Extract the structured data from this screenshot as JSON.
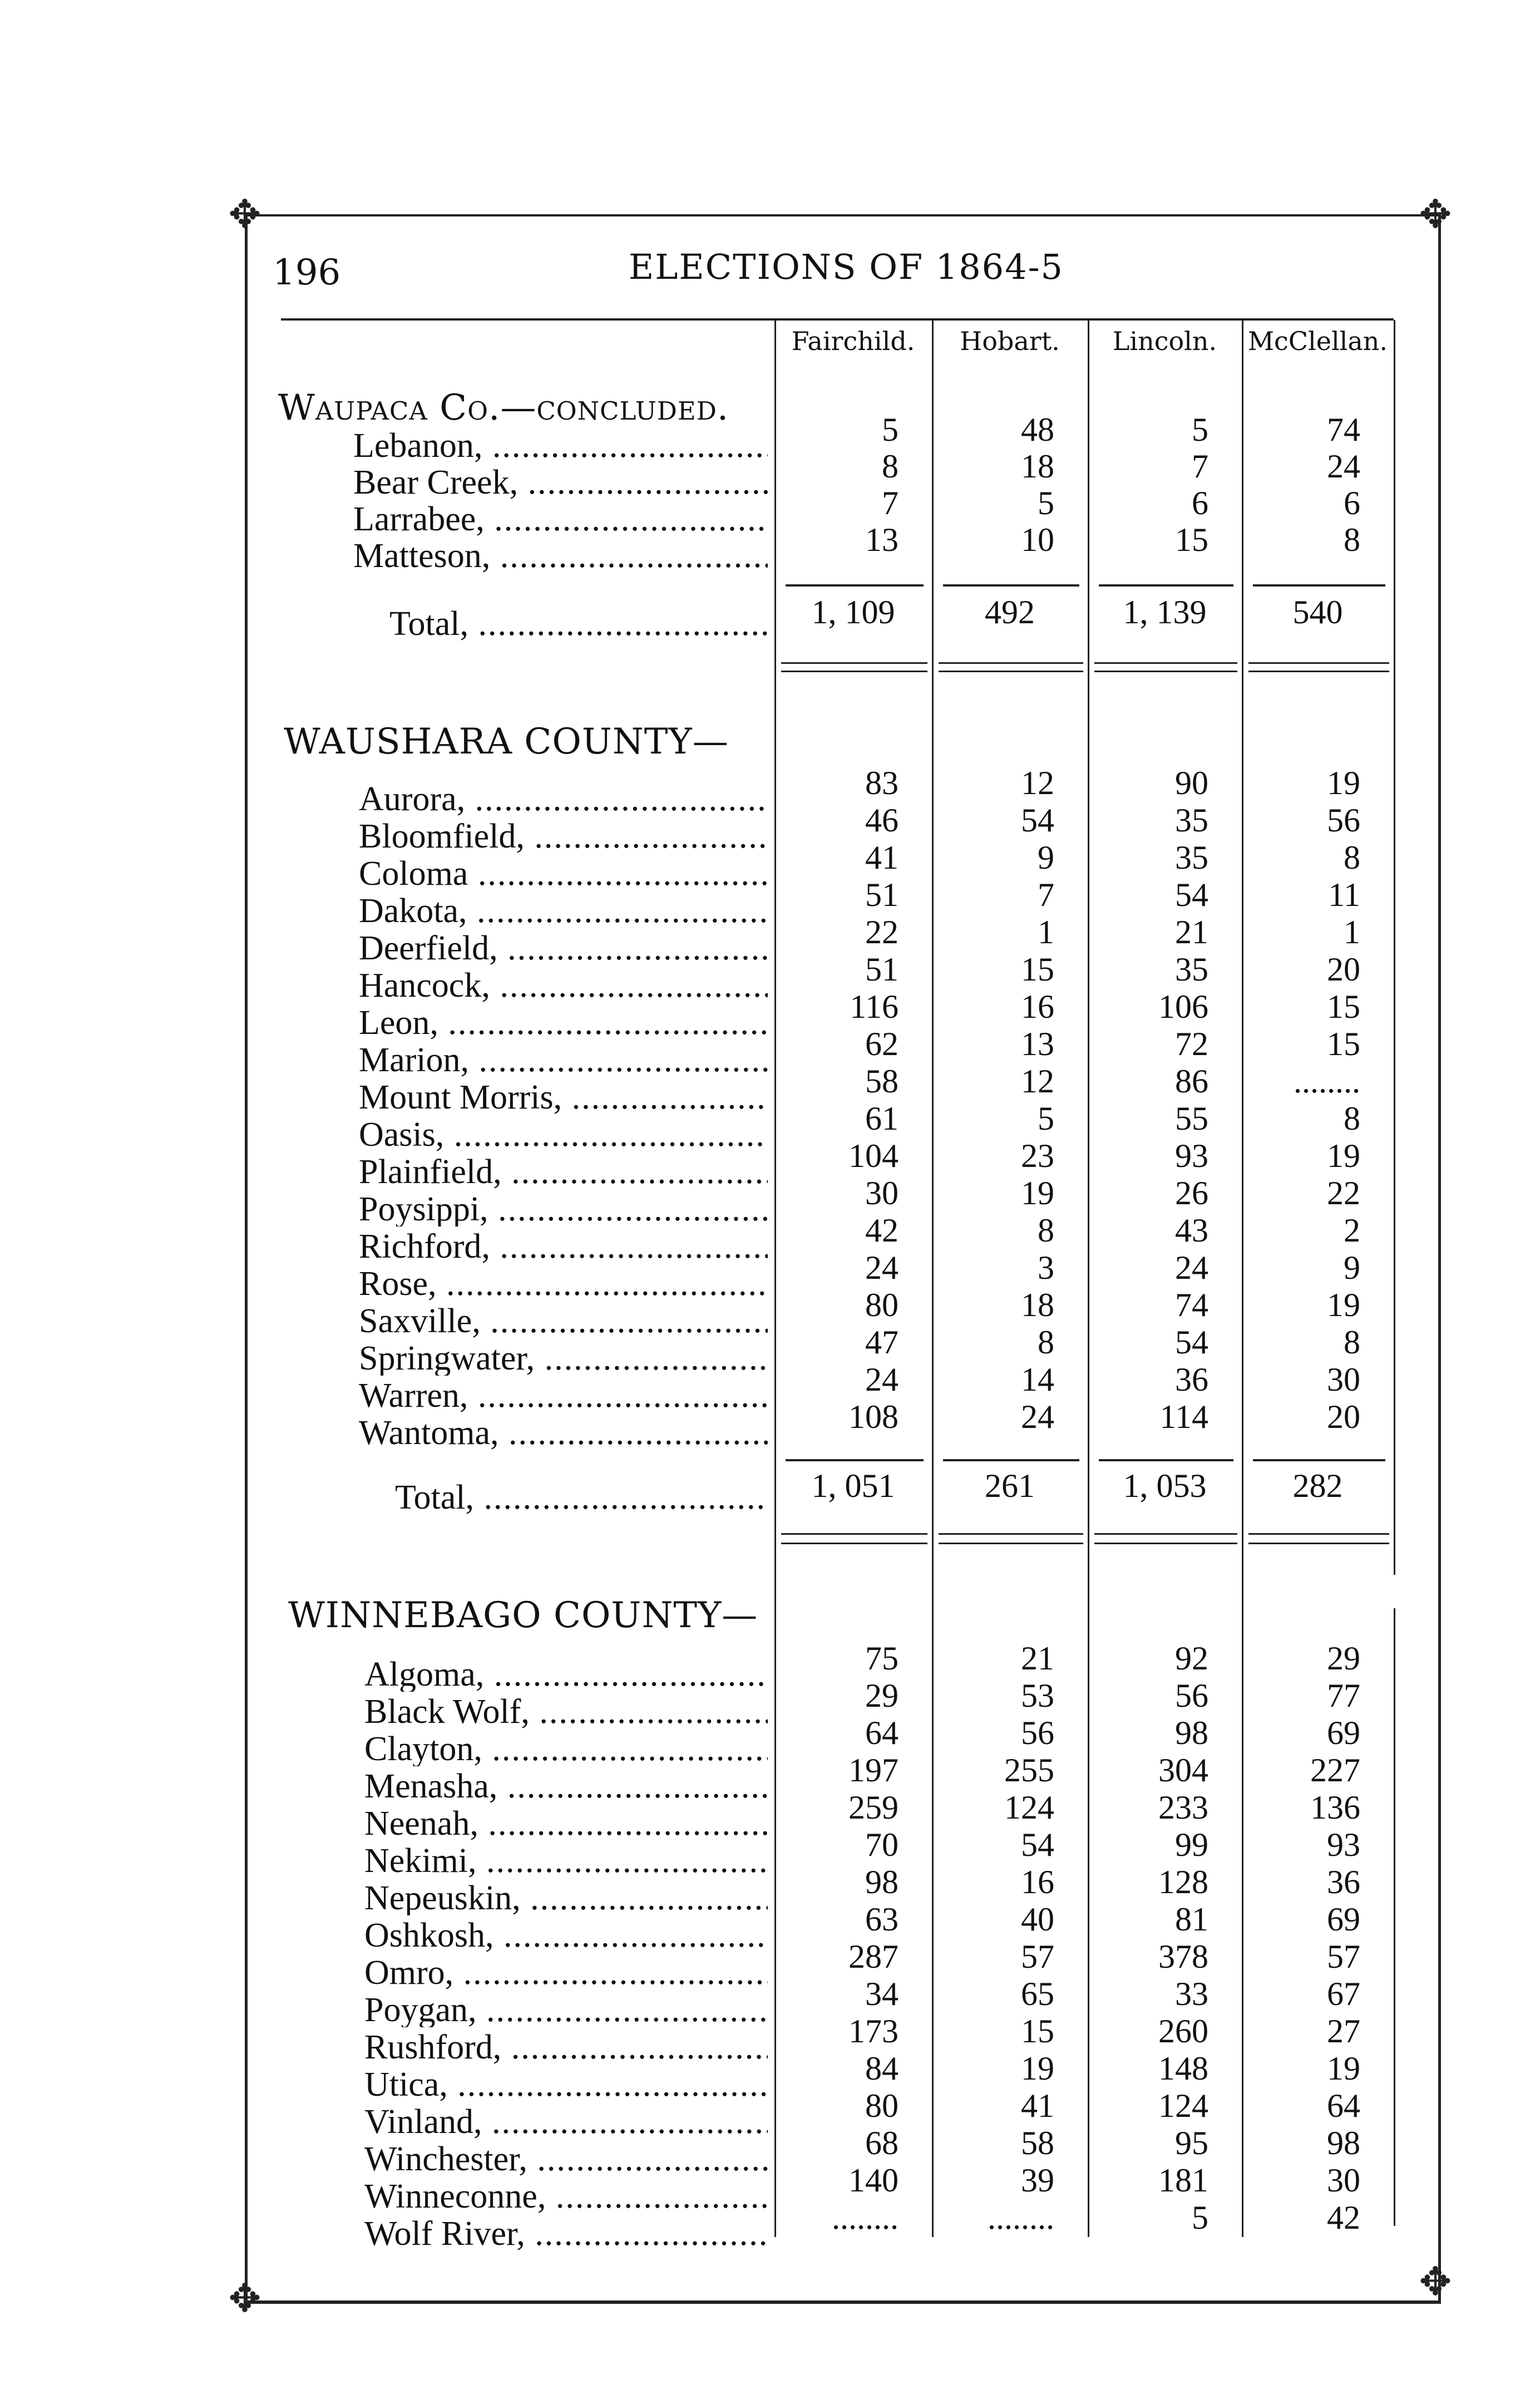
{
  "header": {
    "page_number": "196",
    "title": "ELECTIONS OF 1864-5"
  },
  "columns": [
    "Fairchild.",
    "Hobart.",
    "Lincoln.",
    "McClellan."
  ],
  "sections": [
    {
      "heading": "Waupaca Co.—concluded.",
      "rows": [
        {
          "name": "Lebanon,",
          "values": [
            "5",
            "48",
            "5",
            "74"
          ]
        },
        {
          "name": "Bear Creek,",
          "values": [
            "8",
            "18",
            "7",
            "24"
          ]
        },
        {
          "name": "Larrabee,",
          "values": [
            "7",
            "5",
            "6",
            "6"
          ]
        },
        {
          "name": "Matteson,",
          "values": [
            "13",
            "10",
            "15",
            "8"
          ]
        }
      ],
      "total_label": "Total,",
      "totals": [
        "1, 109",
        "492",
        "1, 139",
        "540"
      ]
    },
    {
      "heading": "WAUSHARA COUNTY—",
      "rows": [
        {
          "name": "Aurora,",
          "values": [
            "83",
            "12",
            "90",
            "19"
          ]
        },
        {
          "name": "Bloomfield,",
          "values": [
            "46",
            "54",
            "35",
            "56"
          ]
        },
        {
          "name": "Coloma",
          "values": [
            "41",
            "9",
            "35",
            "8"
          ]
        },
        {
          "name": "Dakota,",
          "values": [
            "51",
            "7",
            "54",
            "11"
          ]
        },
        {
          "name": "Deerfield,",
          "values": [
            "22",
            "1",
            "21",
            "1"
          ]
        },
        {
          "name": "Hancock,",
          "values": [
            "51",
            "15",
            "35",
            "20"
          ]
        },
        {
          "name": "Leon,",
          "values": [
            "116",
            "16",
            "106",
            "15"
          ]
        },
        {
          "name": "Marion,",
          "values": [
            "62",
            "13",
            "72",
            "15"
          ]
        },
        {
          "name": "Mount Morris,",
          "values": [
            "58",
            "12",
            "86",
            "........"
          ]
        },
        {
          "name": "Oasis,",
          "values": [
            "61",
            "5",
            "55",
            "8"
          ]
        },
        {
          "name": "Plainfield,",
          "values": [
            "104",
            "23",
            "93",
            "19"
          ]
        },
        {
          "name": "Poysippi,",
          "values": [
            "30",
            "19",
            "26",
            "22"
          ]
        },
        {
          "name": "Richford,",
          "values": [
            "42",
            "8",
            "43",
            "2"
          ]
        },
        {
          "name": "Rose,",
          "values": [
            "24",
            "3",
            "24",
            "9"
          ]
        },
        {
          "name": "Saxville,",
          "values": [
            "80",
            "18",
            "74",
            "19"
          ]
        },
        {
          "name": "Springwater,",
          "values": [
            "47",
            "8",
            "54",
            "8"
          ]
        },
        {
          "name": "Warren,",
          "values": [
            "24",
            "14",
            "36",
            "30"
          ]
        },
        {
          "name": "Wantoma,",
          "values": [
            "108",
            "24",
            "114",
            "20"
          ]
        }
      ],
      "total_label": "Total,",
      "totals": [
        "1, 051",
        "261",
        "1, 053",
        "282"
      ]
    },
    {
      "heading": "WINNEBAGO COUNTY—",
      "rows": [
        {
          "name": "Algoma,",
          "values": [
            "75",
            "21",
            "92",
            "29"
          ]
        },
        {
          "name": "Black Wolf,",
          "values": [
            "29",
            "53",
            "56",
            "77"
          ]
        },
        {
          "name": "Clayton,",
          "values": [
            "64",
            "56",
            "98",
            "69"
          ]
        },
        {
          "name": "Menasha,",
          "values": [
            "197",
            "255",
            "304",
            "227"
          ]
        },
        {
          "name": "Neenah,",
          "values": [
            "259",
            "124",
            "233",
            "136"
          ]
        },
        {
          "name": "Nekimi,",
          "values": [
            "70",
            "54",
            "99",
            "93"
          ]
        },
        {
          "name": "Nepeuskin,",
          "values": [
            "98",
            "16",
            "128",
            "36"
          ]
        },
        {
          "name": "Oshkosh,",
          "values": [
            "63",
            "40",
            "81",
            "69"
          ]
        },
        {
          "name": "Omro,",
          "values": [
            "287",
            "57",
            "378",
            "57"
          ]
        },
        {
          "name": "Poygan,",
          "values": [
            "34",
            "65",
            "33",
            "67"
          ]
        },
        {
          "name": "Rushford,",
          "values": [
            "173",
            "15",
            "260",
            "27"
          ]
        },
        {
          "name": "Utica,",
          "values": [
            "84",
            "19",
            "148",
            "19"
          ]
        },
        {
          "name": "Vinland,",
          "values": [
            "80",
            "41",
            "124",
            "64"
          ]
        },
        {
          "name": "Winchester,",
          "values": [
            "68",
            "58",
            "95",
            "98"
          ]
        },
        {
          "name": "Winneconne,",
          "values": [
            "140",
            "39",
            "181",
            "30"
          ]
        },
        {
          "name": "Wolf River,",
          "values": [
            "........",
            "........",
            "5",
            "42"
          ]
        }
      ]
    }
  ]
}
